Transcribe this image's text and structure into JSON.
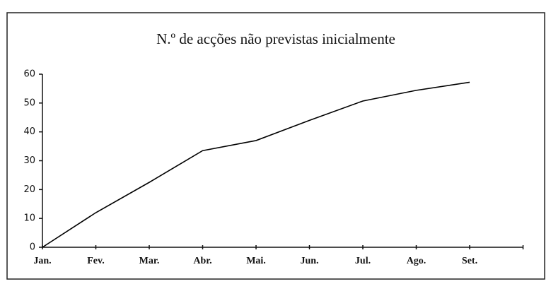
{
  "chart_data": {
    "type": "line",
    "title": "N.º de acções não previstas inicialmente",
    "categories": [
      "Jan.",
      "Fev.",
      "Mar.",
      "Abr.",
      "Mai.",
      "Jun.",
      "Jul.",
      "Ago.",
      "Set.",
      null
    ],
    "values": [
      0,
      12,
      22.5,
      33.5,
      37,
      44,
      50.7,
      54.4,
      57.2,
      null
    ],
    "color": "#000000",
    "ylim": [
      0,
      60
    ],
    "yticks": [
      0,
      10,
      20,
      30,
      40,
      50,
      60
    ],
    "grid": false
  }
}
